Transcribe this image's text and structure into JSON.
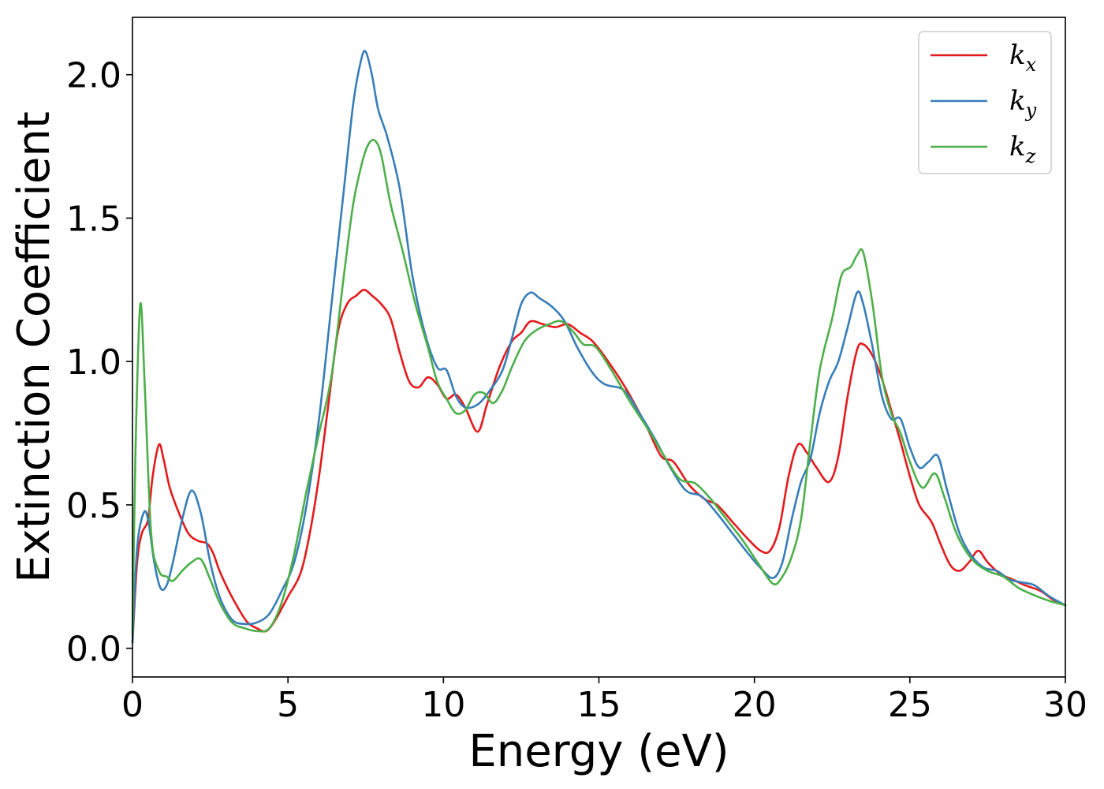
{
  "chart_data": {
    "type": "line",
    "title": "",
    "xlabel": "Energy (eV)",
    "ylabel": "Extinction Coefficient",
    "xlim": [
      0,
      30
    ],
    "ylim": [
      -0.1,
      2.2
    ],
    "x_ticks": [
      0,
      5,
      10,
      15,
      20,
      25,
      30
    ],
    "x_tick_labels": [
      "0",
      "5",
      "10",
      "15",
      "20",
      "25",
      "30"
    ],
    "y_ticks": [
      0.0,
      0.5,
      1.0,
      1.5,
      2.0
    ],
    "y_tick_labels": [
      "0.0",
      "0.5",
      "1.0",
      "1.5",
      "2.0"
    ],
    "grid": false,
    "legend_position": "top-right",
    "series": [
      {
        "name": "k_x",
        "label_base": "k",
        "label_sub": "x",
        "color": "#e41a1c",
        "points": [
          [
            0,
            0.02
          ],
          [
            0.15,
            0.3
          ],
          [
            0.3,
            0.4
          ],
          [
            0.5,
            0.45
          ],
          [
            0.65,
            0.6
          ],
          [
            0.85,
            0.71
          ],
          [
            1.0,
            0.66
          ],
          [
            1.2,
            0.56
          ],
          [
            1.5,
            0.47
          ],
          [
            1.8,
            0.4
          ],
          [
            2.1,
            0.375
          ],
          [
            2.4,
            0.365
          ],
          [
            2.6,
            0.33
          ],
          [
            2.8,
            0.27
          ],
          [
            3.1,
            0.2
          ],
          [
            3.4,
            0.14
          ],
          [
            3.7,
            0.09
          ],
          [
            4.0,
            0.07
          ],
          [
            4.3,
            0.06
          ],
          [
            4.6,
            0.1
          ],
          [
            5.0,
            0.18
          ],
          [
            5.4,
            0.26
          ],
          [
            5.7,
            0.4
          ],
          [
            6.0,
            0.6
          ],
          [
            6.3,
            0.85
          ],
          [
            6.6,
            1.1
          ],
          [
            6.9,
            1.2
          ],
          [
            7.2,
            1.23
          ],
          [
            7.45,
            1.25
          ],
          [
            7.7,
            1.23
          ],
          [
            8.0,
            1.2
          ],
          [
            8.3,
            1.15
          ],
          [
            8.6,
            1.03
          ],
          [
            8.9,
            0.93
          ],
          [
            9.2,
            0.91
          ],
          [
            9.5,
            0.945
          ],
          [
            9.8,
            0.92
          ],
          [
            10.1,
            0.87
          ],
          [
            10.4,
            0.885
          ],
          [
            10.7,
            0.84
          ],
          [
            11.1,
            0.755
          ],
          [
            11.4,
            0.85
          ],
          [
            11.8,
            0.98
          ],
          [
            12.2,
            1.07
          ],
          [
            12.5,
            1.1
          ],
          [
            12.8,
            1.14
          ],
          [
            13.2,
            1.13
          ],
          [
            13.6,
            1.12
          ],
          [
            14.0,
            1.13
          ],
          [
            14.4,
            1.1
          ],
          [
            14.8,
            1.07
          ],
          [
            15.3,
            1.0
          ],
          [
            15.9,
            0.9
          ],
          [
            16.5,
            0.78
          ],
          [
            17.0,
            0.67
          ],
          [
            17.4,
            0.65
          ],
          [
            17.9,
            0.57
          ],
          [
            18.4,
            0.52
          ],
          [
            18.8,
            0.5
          ],
          [
            19.3,
            0.44
          ],
          [
            19.8,
            0.38
          ],
          [
            20.2,
            0.34
          ],
          [
            20.5,
            0.34
          ],
          [
            20.8,
            0.42
          ],
          [
            21.1,
            0.6
          ],
          [
            21.4,
            0.71
          ],
          [
            21.7,
            0.68
          ],
          [
            22.0,
            0.63
          ],
          [
            22.4,
            0.58
          ],
          [
            22.7,
            0.67
          ],
          [
            23.0,
            0.88
          ],
          [
            23.3,
            1.04
          ],
          [
            23.5,
            1.06
          ],
          [
            23.8,
            1.02
          ],
          [
            24.1,
            0.94
          ],
          [
            24.4,
            0.83
          ],
          [
            24.7,
            0.72
          ],
          [
            25.0,
            0.6
          ],
          [
            25.3,
            0.5
          ],
          [
            25.7,
            0.44
          ],
          [
            26.0,
            0.36
          ],
          [
            26.3,
            0.29
          ],
          [
            26.6,
            0.27
          ],
          [
            26.9,
            0.3
          ],
          [
            27.2,
            0.34
          ],
          [
            27.5,
            0.3
          ],
          [
            27.9,
            0.26
          ],
          [
            28.3,
            0.24
          ],
          [
            28.7,
            0.22
          ],
          [
            29.2,
            0.2
          ],
          [
            29.6,
            0.17
          ],
          [
            30.0,
            0.15
          ]
        ]
      },
      {
        "name": "k_y",
        "label_base": "k",
        "label_sub": "y",
        "color": "#377eb8",
        "points": [
          [
            0,
            0.02
          ],
          [
            0.15,
            0.35
          ],
          [
            0.35,
            0.47
          ],
          [
            0.5,
            0.45
          ],
          [
            0.7,
            0.3
          ],
          [
            0.9,
            0.21
          ],
          [
            1.1,
            0.22
          ],
          [
            1.3,
            0.3
          ],
          [
            1.6,
            0.45
          ],
          [
            1.9,
            0.55
          ],
          [
            2.2,
            0.47
          ],
          [
            2.5,
            0.3
          ],
          [
            2.8,
            0.18
          ],
          [
            3.2,
            0.1
          ],
          [
            3.6,
            0.085
          ],
          [
            4.0,
            0.09
          ],
          [
            4.4,
            0.12
          ],
          [
            4.8,
            0.2
          ],
          [
            5.2,
            0.3
          ],
          [
            5.6,
            0.5
          ],
          [
            6.0,
            0.8
          ],
          [
            6.4,
            1.2
          ],
          [
            6.8,
            1.6
          ],
          [
            7.1,
            1.9
          ],
          [
            7.35,
            2.05
          ],
          [
            7.5,
            2.08
          ],
          [
            7.7,
            2.0
          ],
          [
            7.9,
            1.88
          ],
          [
            8.2,
            1.78
          ],
          [
            8.6,
            1.6
          ],
          [
            9.0,
            1.3
          ],
          [
            9.4,
            1.1
          ],
          [
            9.8,
            0.98
          ],
          [
            10.1,
            0.97
          ],
          [
            10.4,
            0.88
          ],
          [
            10.7,
            0.84
          ],
          [
            11.1,
            0.85
          ],
          [
            11.5,
            0.9
          ],
          [
            11.9,
            0.97
          ],
          [
            12.2,
            1.08
          ],
          [
            12.5,
            1.2
          ],
          [
            12.8,
            1.24
          ],
          [
            13.1,
            1.22
          ],
          [
            13.5,
            1.19
          ],
          [
            13.9,
            1.14
          ],
          [
            14.3,
            1.05
          ],
          [
            14.8,
            0.96
          ],
          [
            15.2,
            0.92
          ],
          [
            15.8,
            0.9
          ],
          [
            16.3,
            0.82
          ],
          [
            16.8,
            0.73
          ],
          [
            17.3,
            0.63
          ],
          [
            17.8,
            0.55
          ],
          [
            18.3,
            0.53
          ],
          [
            18.8,
            0.47
          ],
          [
            19.3,
            0.4
          ],
          [
            19.8,
            0.33
          ],
          [
            20.2,
            0.28
          ],
          [
            20.6,
            0.245
          ],
          [
            20.9,
            0.3
          ],
          [
            21.2,
            0.45
          ],
          [
            21.5,
            0.58
          ],
          [
            21.8,
            0.66
          ],
          [
            22.1,
            0.82
          ],
          [
            22.4,
            0.93
          ],
          [
            22.7,
            1.0
          ],
          [
            23.0,
            1.12
          ],
          [
            23.3,
            1.24
          ],
          [
            23.5,
            1.2
          ],
          [
            23.8,
            1.05
          ],
          [
            24.1,
            0.88
          ],
          [
            24.4,
            0.8
          ],
          [
            24.7,
            0.8
          ],
          [
            25.0,
            0.7
          ],
          [
            25.3,
            0.63
          ],
          [
            25.6,
            0.65
          ],
          [
            25.9,
            0.67
          ],
          [
            26.2,
            0.55
          ],
          [
            26.6,
            0.4
          ],
          [
            27.0,
            0.32
          ],
          [
            27.4,
            0.28
          ],
          [
            27.8,
            0.27
          ],
          [
            28.2,
            0.24
          ],
          [
            28.6,
            0.23
          ],
          [
            29.0,
            0.22
          ],
          [
            29.5,
            0.18
          ],
          [
            30.0,
            0.15
          ]
        ]
      },
      {
        "name": "k_z",
        "label_base": "k",
        "label_sub": "z",
        "color": "#4daf4a",
        "points": [
          [
            0,
            0.05
          ],
          [
            0.1,
            0.7
          ],
          [
            0.25,
            1.2
          ],
          [
            0.4,
            0.9
          ],
          [
            0.6,
            0.4
          ],
          [
            0.85,
            0.27
          ],
          [
            1.1,
            0.25
          ],
          [
            1.3,
            0.235
          ],
          [
            1.6,
            0.27
          ],
          [
            1.9,
            0.3
          ],
          [
            2.2,
            0.31
          ],
          [
            2.5,
            0.24
          ],
          [
            2.8,
            0.16
          ],
          [
            3.2,
            0.09
          ],
          [
            3.6,
            0.07
          ],
          [
            4.0,
            0.06
          ],
          [
            4.4,
            0.07
          ],
          [
            4.8,
            0.16
          ],
          [
            5.2,
            0.33
          ],
          [
            5.6,
            0.55
          ],
          [
            6.0,
            0.75
          ],
          [
            6.4,
            0.95
          ],
          [
            6.8,
            1.3
          ],
          [
            7.1,
            1.55
          ],
          [
            7.4,
            1.7
          ],
          [
            7.6,
            1.76
          ],
          [
            7.8,
            1.77
          ],
          [
            8.0,
            1.72
          ],
          [
            8.3,
            1.55
          ],
          [
            8.7,
            1.38
          ],
          [
            9.1,
            1.2
          ],
          [
            9.5,
            1.05
          ],
          [
            9.8,
            0.93
          ],
          [
            10.1,
            0.87
          ],
          [
            10.4,
            0.82
          ],
          [
            10.7,
            0.83
          ],
          [
            11.0,
            0.885
          ],
          [
            11.3,
            0.89
          ],
          [
            11.6,
            0.855
          ],
          [
            11.9,
            0.9
          ],
          [
            12.2,
            0.98
          ],
          [
            12.6,
            1.07
          ],
          [
            13.0,
            1.11
          ],
          [
            13.4,
            1.13
          ],
          [
            13.8,
            1.14
          ],
          [
            14.2,
            1.1
          ],
          [
            14.5,
            1.06
          ],
          [
            14.9,
            1.05
          ],
          [
            15.4,
            0.97
          ],
          [
            16.0,
            0.86
          ],
          [
            16.6,
            0.76
          ],
          [
            17.1,
            0.67
          ],
          [
            17.6,
            0.59
          ],
          [
            18.1,
            0.575
          ],
          [
            18.6,
            0.52
          ],
          [
            19.1,
            0.45
          ],
          [
            19.6,
            0.38
          ],
          [
            20.1,
            0.3
          ],
          [
            20.6,
            0.225
          ],
          [
            20.9,
            0.25
          ],
          [
            21.2,
            0.32
          ],
          [
            21.5,
            0.45
          ],
          [
            21.8,
            0.72
          ],
          [
            22.1,
            0.97
          ],
          [
            22.5,
            1.15
          ],
          [
            22.8,
            1.3
          ],
          [
            23.1,
            1.33
          ],
          [
            23.3,
            1.37
          ],
          [
            23.5,
            1.38
          ],
          [
            23.8,
            1.2
          ],
          [
            24.1,
            0.95
          ],
          [
            24.4,
            0.82
          ],
          [
            24.7,
            0.75
          ],
          [
            25.0,
            0.65
          ],
          [
            25.4,
            0.56
          ],
          [
            25.8,
            0.61
          ],
          [
            26.1,
            0.53
          ],
          [
            26.5,
            0.4
          ],
          [
            27.0,
            0.31
          ],
          [
            27.5,
            0.27
          ],
          [
            28.0,
            0.25
          ],
          [
            28.5,
            0.21
          ],
          [
            29.0,
            0.185
          ],
          [
            29.5,
            0.165
          ],
          [
            30.0,
            0.15
          ]
        ]
      }
    ]
  }
}
